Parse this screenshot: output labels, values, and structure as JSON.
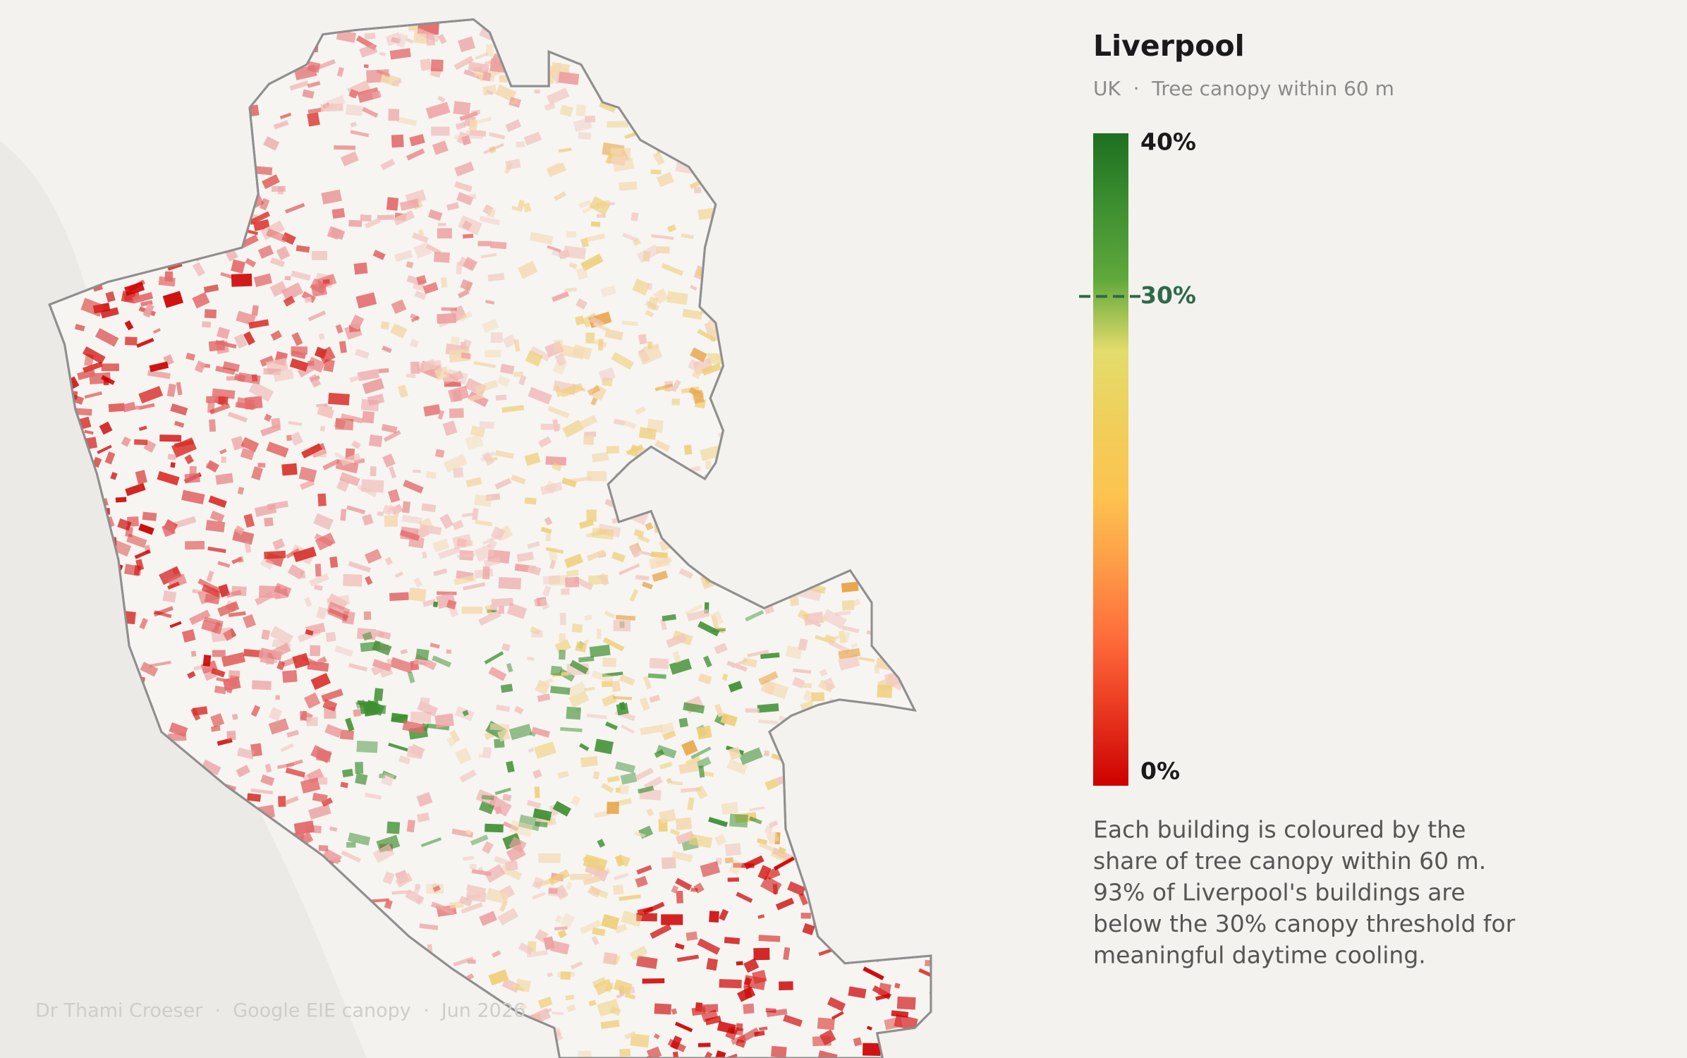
{
  "header": {
    "title": "Liverpool",
    "subtitle": "UK  ·  Tree canopy within 60 m"
  },
  "legend": {
    "range": [
      0,
      40
    ],
    "ticks": [
      {
        "value": 40,
        "label": "40%"
      },
      {
        "value": 30,
        "label": "30%"
      },
      {
        "value": 0,
        "label": "0%"
      }
    ],
    "threshold_tick": 1,
    "threshold_color": "#2d6a4a",
    "colors": [
      "#cc0000",
      "#e8361f",
      "#ff6a3a",
      "#fe9a47",
      "#fdc34f",
      "#f0cf5a",
      "#e3dc6c",
      "#5fa83b",
      "#3d8f30",
      "#1d7020"
    ]
  },
  "description": [
    "Each building is coloured by the",
    "share of tree canopy within 60 m.",
    "93% of Liverpool's buildings are",
    "below the 30% canopy threshold for",
    "meaningful daytime cooling."
  ],
  "footer": "Dr Thami Croeser  ·  Google EIE canopy  ·  Jun 2026"
}
